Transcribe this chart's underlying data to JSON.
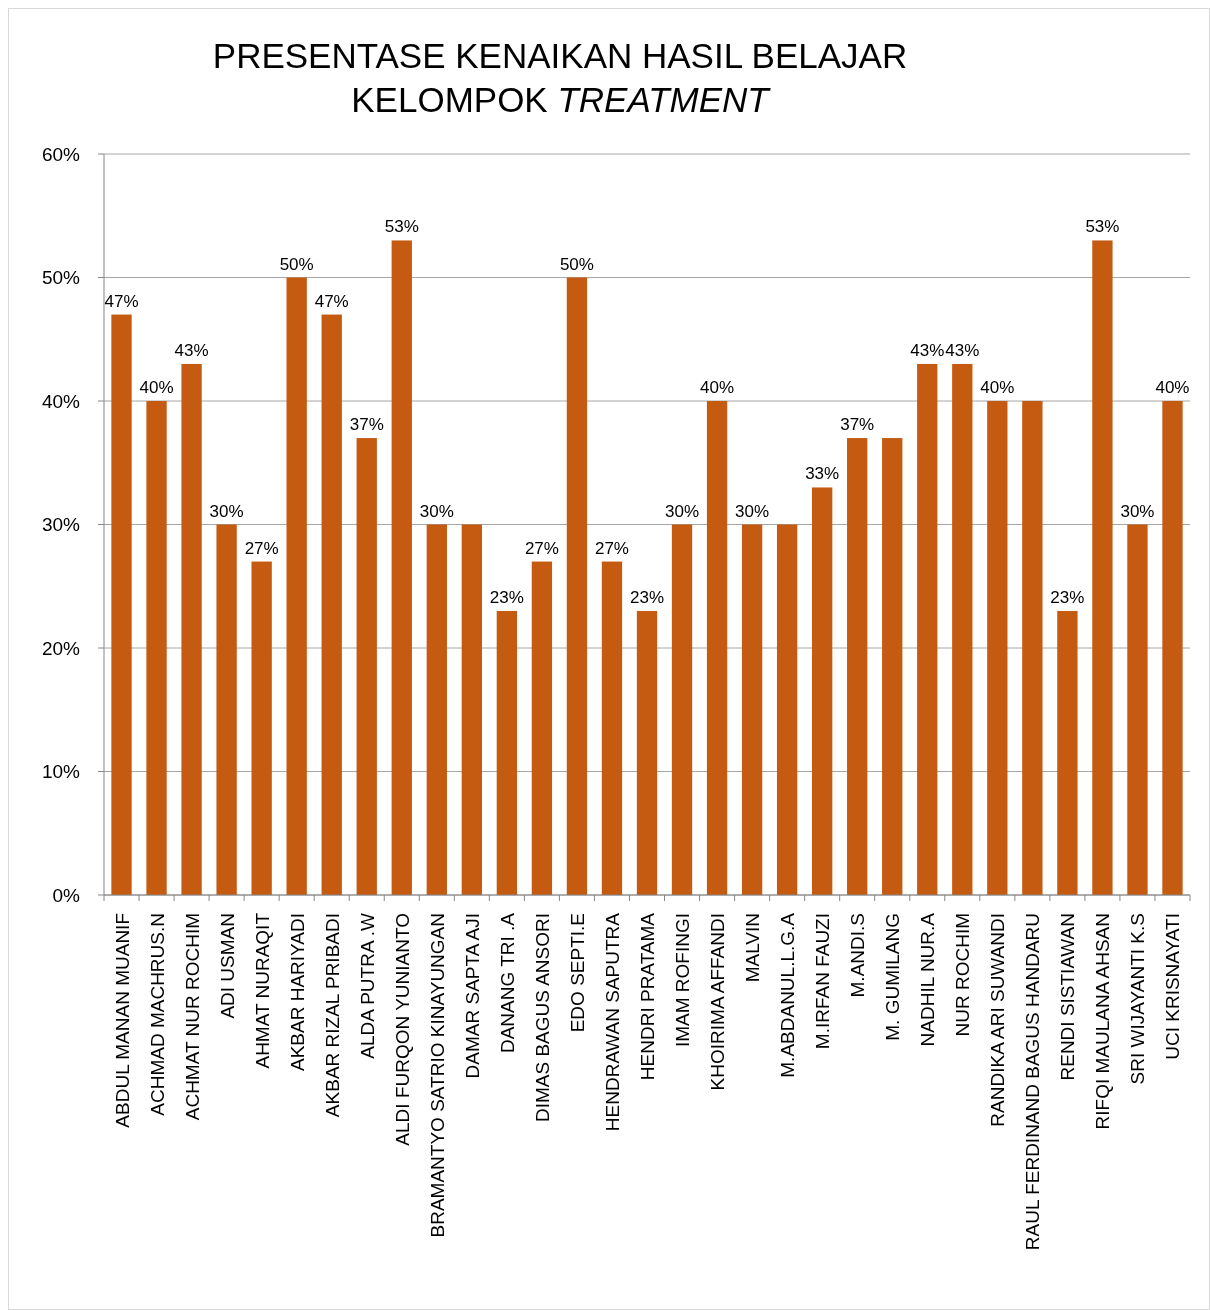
{
  "chart_data": {
    "type": "bar",
    "title": "PRESENTASE KENAIKAN HASIL BELAJAR\nKELOMPOK TREATMENT",
    "categories": [
      "ABDUL MANAN MUANIF",
      "ACHMAD MACHRUS.N",
      "ACHMAT NUR ROCHIM",
      "ADI USMAN",
      "AHMAT NURAQIT",
      "AKBAR HARIYADI",
      "AKBAR RIZAL PRIBADI",
      "ALDA PUTRA .W",
      "ALDI FURQON YUNIANTO",
      "BRAMANTYO SATRIO KINAYUNGAN",
      "DAMAR SAPTA AJI",
      "DANANG TRI .A",
      "DIMAS BAGUS ANSORI",
      "EDO SEPTI.E",
      "HENDRAWAN SAPUTRA",
      "HENDRI PRATAMA",
      "IMAM ROFINGI",
      "KHOIRIMA AFFANDI",
      "MALVIN",
      "M.ABDANUL.L.G.A",
      "M.IRFAN FAUZI",
      "M.ANDI.S",
      "M. GUMILANG",
      "NADHIL NUR.A",
      "NUR ROCHIM",
      "RANDIKA ARI SUWANDI",
      "RAUL FERDINAND BAGUS HANDARU",
      "RENDI SISTIAWAN",
      "RIFQI MAULANA AHSAN",
      "SRI WIJAYANTI  K.S",
      "UCI KRISNAYATI"
    ],
    "values": [
      47,
      40,
      43,
      30,
      27,
      50,
      47,
      37,
      53,
      30,
      30,
      23,
      27,
      50,
      27,
      23,
      30,
      40,
      30,
      30,
      33,
      37,
      37,
      43,
      43,
      40,
      40,
      23,
      53,
      30,
      40
    ],
    "value_labels": [
      "47%",
      "40%",
      "43%",
      "30%",
      "27%",
      "50%",
      "47%",
      "37%",
      "53%",
      "30%",
      null,
      "23%",
      "27%",
      "50%",
      "27%",
      "23%",
      "30%",
      "40%",
      "30%",
      null,
      "33%",
      "37%",
      null,
      "43%",
      "43%",
      "40%",
      null,
      "23%",
      "53%",
      "30%",
      "40%"
    ],
    "color": "#c55a11",
    "ylim": [
      0,
      60
    ],
    "yticks": [
      {
        "value": 0,
        "label": "0%"
      },
      {
        "value": 10,
        "label": "10%"
      },
      {
        "value": 20,
        "label": "20%"
      },
      {
        "value": 30,
        "label": "30%"
      },
      {
        "value": 40,
        "label": "40%"
      },
      {
        "value": 50,
        "label": "50%"
      },
      {
        "value": 60,
        "label": "60%"
      }
    ],
    "grid": "y"
  }
}
